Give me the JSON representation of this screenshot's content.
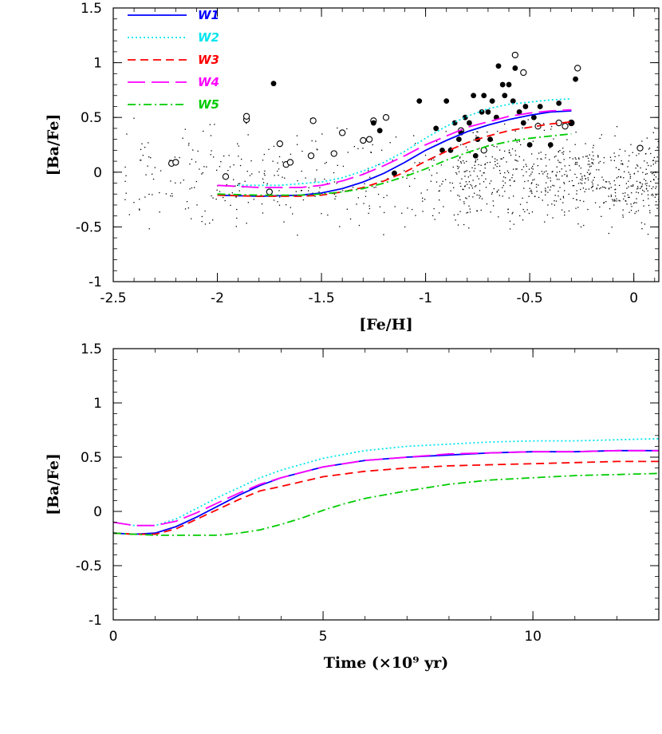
{
  "chart_data": [
    {
      "type": "line",
      "panel": "top",
      "xlabel": "[Fe/H]",
      "ylabel": "[Ba/Fe]",
      "xlim": [
        -2.5,
        0.12
      ],
      "ylim": [
        -1,
        1.5
      ],
      "xticks": [
        -2.5,
        -2,
        -1.5,
        -1,
        -0.5,
        0
      ],
      "xtick_labels": [
        "-2.5",
        "-2",
        "-1.5",
        "-1",
        "-0.5",
        "0"
      ],
      "yticks": [
        -1,
        -0.5,
        0,
        0.5,
        1,
        1.5
      ],
      "ytick_labels": [
        "-1",
        "-0.5",
        "0",
        "0.5",
        "1",
        "1.5"
      ],
      "legend_position": "top-left",
      "series": [
        {
          "name": "W1",
          "color": "#0000ff",
          "dash": "solid",
          "x": [
            -2,
            -1.8,
            -1.6,
            -1.5,
            -1.4,
            -1.3,
            -1.2,
            -1.1,
            -1,
            -0.9,
            -0.8,
            -0.7,
            -0.6,
            -0.5,
            -0.4,
            -0.3
          ],
          "y": [
            -0.21,
            -0.22,
            -0.21,
            -0.19,
            -0.15,
            -0.09,
            -0.01,
            0.09,
            0.2,
            0.29,
            0.37,
            0.43,
            0.48,
            0.52,
            0.55,
            0.56
          ]
        },
        {
          "name": "W2",
          "color": "#00e5ee",
          "dash": "dotted",
          "x": [
            -1.9,
            -1.7,
            -1.5,
            -1.4,
            -1.3,
            -1.2,
            -1.1,
            -1,
            -0.9,
            -0.8,
            -0.7,
            -0.6,
            -0.5,
            -0.4,
            -0.3
          ],
          "y": [
            -0.12,
            -0.12,
            -0.09,
            -0.05,
            0.01,
            0.09,
            0.19,
            0.31,
            0.42,
            0.51,
            0.58,
            0.62,
            0.64,
            0.66,
            0.67
          ]
        },
        {
          "name": "W3",
          "color": "#ff0000",
          "dash": "short-dash",
          "x": [
            -2,
            -1.8,
            -1.6,
            -1.5,
            -1.4,
            -1.3,
            -1.2,
            -1.1,
            -1,
            -0.9,
            -0.8,
            -0.7,
            -0.6,
            -0.5,
            -0.4,
            -0.3
          ],
          "y": [
            -0.21,
            -0.22,
            -0.22,
            -0.21,
            -0.18,
            -0.14,
            -0.08,
            0.0,
            0.1,
            0.19,
            0.27,
            0.33,
            0.38,
            0.41,
            0.44,
            0.46
          ]
        },
        {
          "name": "W4",
          "color": "#ff00ff",
          "dash": "long-dash",
          "x": [
            -2,
            -1.8,
            -1.6,
            -1.5,
            -1.4,
            -1.3,
            -1.2,
            -1.1,
            -1,
            -0.9,
            -0.8,
            -0.7,
            -0.6,
            -0.5,
            -0.4,
            -0.3
          ],
          "y": [
            -0.12,
            -0.14,
            -0.14,
            -0.12,
            -0.08,
            -0.02,
            0.06,
            0.15,
            0.25,
            0.33,
            0.41,
            0.46,
            0.51,
            0.54,
            0.56,
            0.57
          ]
        },
        {
          "name": "W5",
          "color": "#00cc00",
          "dash": "dash-dot",
          "x": [
            -2,
            -1.8,
            -1.6,
            -1.5,
            -1.4,
            -1.3,
            -1.2,
            -1.1,
            -1,
            -0.9,
            -0.8,
            -0.7,
            -0.6,
            -0.5,
            -0.4,
            -0.3
          ],
          "y": [
            -0.2,
            -0.21,
            -0.21,
            -0.2,
            -0.18,
            -0.15,
            -0.1,
            -0.04,
            0.03,
            0.11,
            0.18,
            0.24,
            0.28,
            0.31,
            0.33,
            0.35
          ]
        }
      ],
      "observations_open_circles": {
        "x": [
          -2.22,
          -2.2,
          -1.96,
          -1.86,
          -1.86,
          -1.75,
          -1.7,
          -1.67,
          -1.65,
          -1.55,
          -1.54,
          -1.44,
          -1.4,
          -1.3,
          -1.27,
          -1.25,
          -1.19,
          -0.83,
          -0.72,
          -0.57,
          -0.53,
          -0.46,
          -0.36,
          -0.33,
          -0.3,
          -0.27,
          0.03
        ],
        "y": [
          0.08,
          0.09,
          -0.04,
          0.48,
          0.51,
          -0.18,
          0.26,
          0.07,
          0.09,
          0.15,
          0.47,
          0.17,
          0.36,
          0.29,
          0.3,
          0.47,
          0.5,
          0.38,
          0.2,
          1.07,
          0.91,
          0.42,
          0.45,
          0.42,
          0.45,
          0.95,
          0.22
        ]
      },
      "observations_filled_circles": {
        "x": [
          -1.73,
          -1.25,
          -1.22,
          -1.15,
          -1.03,
          -0.95,
          -0.92,
          -0.9,
          -0.88,
          -0.86,
          -0.84,
          -0.83,
          -0.81,
          -0.79,
          -0.77,
          -0.76,
          -0.75,
          -0.73,
          -0.72,
          -0.7,
          -0.69,
          -0.68,
          -0.66,
          -0.65,
          -0.63,
          -0.62,
          -0.6,
          -0.58,
          -0.57,
          -0.55,
          -0.53,
          -0.52,
          -0.5,
          -0.48,
          -0.45,
          -0.4,
          -0.36,
          -0.3,
          -0.28
        ],
        "y": [
          0.81,
          0.45,
          0.38,
          -0.01,
          0.65,
          0.4,
          0.2,
          0.65,
          0.2,
          0.45,
          0.3,
          0.36,
          0.5,
          0.45,
          0.7,
          0.15,
          0.3,
          0.55,
          0.7,
          0.55,
          0.3,
          0.65,
          0.5,
          0.97,
          0.8,
          0.7,
          0.8,
          0.65,
          0.95,
          0.55,
          0.45,
          0.6,
          0.25,
          0.5,
          0.6,
          0.25,
          0.63,
          0.45,
          0.85
        ]
      }
    },
    {
      "type": "line",
      "panel": "bottom",
      "xlabel": "Time (×10⁹ yr)",
      "ylabel": "[Ba/Fe]",
      "xlim": [
        0,
        13
      ],
      "ylim": [
        -1,
        1.5
      ],
      "xticks": [
        0,
        5,
        10
      ],
      "xtick_labels": [
        "0",
        "5",
        "10"
      ],
      "yticks": [
        -1,
        -0.5,
        0,
        0.5,
        1,
        1.5
      ],
      "ytick_labels": [
        "-1",
        "-0.5",
        "0",
        "0.5",
        "1",
        "1.5"
      ],
      "series": [
        {
          "name": "W1",
          "color": "#0000ff",
          "dash": "solid",
          "x": [
            0,
            0.5,
            1,
            1.5,
            2,
            2.5,
            3,
            3.5,
            4,
            5,
            6,
            7,
            8,
            9,
            10,
            11,
            12,
            13
          ],
          "y": [
            -0.2,
            -0.21,
            -0.2,
            -0.14,
            -0.05,
            0.05,
            0.15,
            0.24,
            0.31,
            0.41,
            0.47,
            0.5,
            0.52,
            0.54,
            0.55,
            0.55,
            0.56,
            0.56
          ]
        },
        {
          "name": "W2",
          "color": "#00e5ee",
          "dash": "dotted",
          "x": [
            0,
            0.5,
            1,
            1.5,
            2,
            2.5,
            3,
            3.5,
            4,
            5,
            6,
            7,
            8,
            9,
            10,
            11,
            12,
            13
          ],
          "y": [
            -0.1,
            -0.13,
            -0.13,
            -0.07,
            0.03,
            0.13,
            0.22,
            0.31,
            0.38,
            0.49,
            0.56,
            0.6,
            0.62,
            0.64,
            0.65,
            0.65,
            0.66,
            0.67
          ]
        },
        {
          "name": "W3",
          "color": "#ff0000",
          "dash": "short-dash",
          "x": [
            0,
            0.5,
            1,
            1.5,
            2,
            2.5,
            3,
            3.5,
            4,
            5,
            6,
            7,
            8,
            9,
            10,
            11,
            12,
            13
          ],
          "y": [
            -0.2,
            -0.21,
            -0.21,
            -0.16,
            -0.07,
            0.02,
            0.11,
            0.19,
            0.23,
            0.32,
            0.37,
            0.4,
            0.42,
            0.43,
            0.44,
            0.45,
            0.46,
            0.46
          ]
        },
        {
          "name": "W4",
          "color": "#ff00ff",
          "dash": "long-dash",
          "x": [
            0,
            0.5,
            1,
            1.5,
            2,
            2.5,
            3,
            3.5,
            4,
            5,
            6,
            7,
            8,
            9,
            10,
            11,
            12,
            13
          ],
          "y": [
            -0.1,
            -0.13,
            -0.13,
            -0.09,
            -0.01,
            0.08,
            0.17,
            0.25,
            0.31,
            0.41,
            0.47,
            0.5,
            0.53,
            0.54,
            0.55,
            0.55,
            0.56,
            0.56
          ]
        },
        {
          "name": "W5",
          "color": "#00cc00",
          "dash": "dash-dot",
          "x": [
            0,
            0.5,
            1,
            1.5,
            2,
            2.5,
            3,
            3.5,
            4,
            4.5,
            5,
            5.5,
            6,
            7,
            8,
            9,
            10,
            11,
            12,
            13
          ],
          "y": [
            -0.2,
            -0.21,
            -0.22,
            -0.22,
            -0.22,
            -0.22,
            -0.2,
            -0.17,
            -0.12,
            -0.06,
            0.01,
            0.07,
            0.12,
            0.19,
            0.25,
            0.29,
            0.31,
            0.33,
            0.34,
            0.35
          ]
        }
      ]
    }
  ]
}
